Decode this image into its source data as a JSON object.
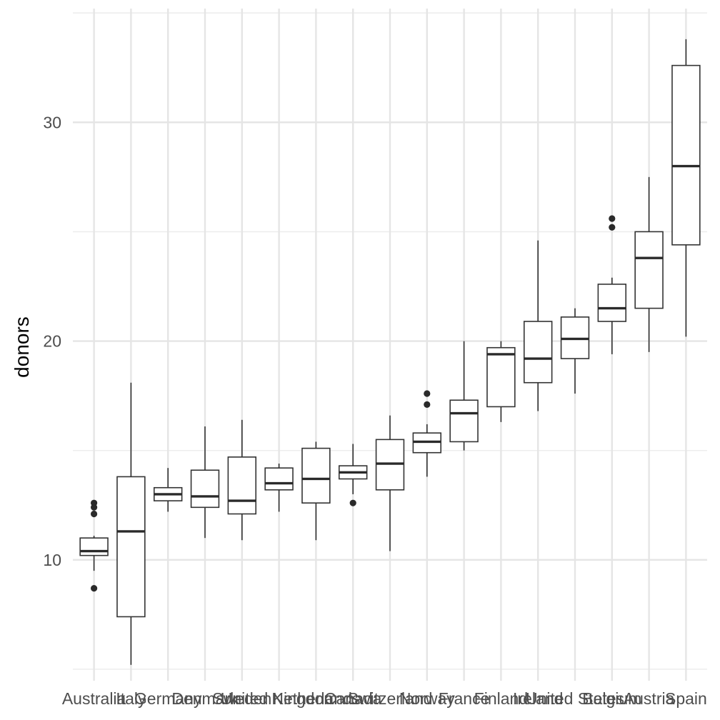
{
  "chart_data": {
    "type": "boxplot",
    "ylabel": "donors",
    "xlabel": "",
    "ylim": [
      4.9,
      35.2
    ],
    "yticks": [
      10,
      20,
      30
    ],
    "grid": true,
    "categories": [
      "Australia",
      "Italy",
      "Germany",
      "Denmark",
      "Sweden",
      "United Kingdom",
      "Netherlands",
      "Canada",
      "Switzerland",
      "Norway",
      "France",
      "Finland",
      "Ireland",
      "United States",
      "Belgium",
      "Austria",
      "Spain"
    ],
    "boxes": [
      {
        "category": "Australia",
        "q1": 10.2,
        "median": 10.4,
        "q3": 11.0,
        "whisker_low": 9.5,
        "whisker_high": 11.1,
        "outliers": [
          8.7,
          12.1,
          12.4,
          12.6
        ]
      },
      {
        "category": "Italy",
        "q1": 7.4,
        "median": 11.3,
        "q3": 13.8,
        "whisker_low": 5.2,
        "whisker_high": 18.1,
        "outliers": []
      },
      {
        "category": "Germany",
        "q1": 12.7,
        "median": 13.0,
        "q3": 13.3,
        "whisker_low": 12.2,
        "whisker_high": 14.2,
        "outliers": []
      },
      {
        "category": "Denmark",
        "q1": 12.4,
        "median": 12.9,
        "q3": 14.1,
        "whisker_low": 11.0,
        "whisker_high": 16.1,
        "outliers": []
      },
      {
        "category": "Sweden",
        "q1": 12.1,
        "median": 12.7,
        "q3": 14.7,
        "whisker_low": 10.9,
        "whisker_high": 16.4,
        "outliers": []
      },
      {
        "category": "United Kingdom",
        "q1": 13.2,
        "median": 13.5,
        "q3": 14.2,
        "whisker_low": 12.2,
        "whisker_high": 14.4,
        "outliers": []
      },
      {
        "category": "Netherlands",
        "q1": 12.6,
        "median": 13.7,
        "q3": 15.1,
        "whisker_low": 10.9,
        "whisker_high": 15.4,
        "outliers": []
      },
      {
        "category": "Canada",
        "q1": 13.7,
        "median": 14.0,
        "q3": 14.3,
        "whisker_low": 13.0,
        "whisker_high": 15.3,
        "outliers": [
          12.6
        ]
      },
      {
        "category": "Switzerland",
        "q1": 13.2,
        "median": 14.4,
        "q3": 15.5,
        "whisker_low": 10.4,
        "whisker_high": 16.6,
        "outliers": []
      },
      {
        "category": "Norway",
        "q1": 14.9,
        "median": 15.4,
        "q3": 15.8,
        "whisker_low": 13.8,
        "whisker_high": 16.2,
        "outliers": [
          17.1,
          17.6
        ]
      },
      {
        "category": "France",
        "q1": 15.4,
        "median": 16.7,
        "q3": 17.3,
        "whisker_low": 15.0,
        "whisker_high": 20.0,
        "outliers": []
      },
      {
        "category": "Finland",
        "q1": 17.0,
        "median": 19.4,
        "q3": 19.7,
        "whisker_low": 16.3,
        "whisker_high": 20.0,
        "outliers": []
      },
      {
        "category": "Ireland",
        "q1": 18.1,
        "median": 19.2,
        "q3": 20.9,
        "whisker_low": 16.8,
        "whisker_high": 24.6,
        "outliers": []
      },
      {
        "category": "United States",
        "q1": 19.2,
        "median": 20.1,
        "q3": 21.1,
        "whisker_low": 17.6,
        "whisker_high": 21.5,
        "outliers": []
      },
      {
        "category": "Belgium",
        "q1": 20.9,
        "median": 21.5,
        "q3": 22.6,
        "whisker_low": 19.4,
        "whisker_high": 22.9,
        "outliers": [
          25.2,
          25.6
        ]
      },
      {
        "category": "Austria",
        "q1": 21.5,
        "median": 23.8,
        "q3": 25.0,
        "whisker_low": 19.5,
        "whisker_high": 27.5,
        "outliers": []
      },
      {
        "category": "Spain",
        "q1": 24.4,
        "median": 28.0,
        "q3": 32.6,
        "whisker_low": 20.2,
        "whisker_high": 33.8,
        "outliers": []
      }
    ]
  }
}
